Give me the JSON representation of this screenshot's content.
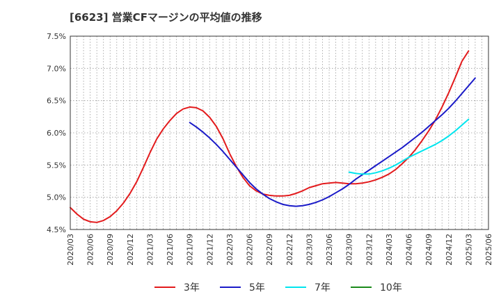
{
  "chart_data": {
    "type": "line",
    "title": "[6623]  営業CFマージンの平均値の推移",
    "xlabel": "",
    "ylabel": "",
    "ylim": [
      4.5,
      7.5
    ],
    "y_ticks": [
      "4.5%",
      "5.0%",
      "5.5%",
      "6.0%",
      "6.5%",
      "7.0%",
      "7.5%"
    ],
    "x_ticks": [
      "2020/03",
      "2020/06",
      "2020/09",
      "2020/12",
      "2021/03",
      "2021/06",
      "2021/09",
      "2021/12",
      "2022/03",
      "2022/06",
      "2022/09",
      "2022/12",
      "2023/03",
      "2023/06",
      "2023/09",
      "2023/12",
      "2024/03",
      "2024/06",
      "2024/09",
      "2024/12",
      "2025/03",
      "2025/06"
    ],
    "grid": true,
    "legend_position": "bottom",
    "series": [
      {
        "name": "3年",
        "color": "#e31a1c",
        "points": [
          [
            "2020/03",
            4.84
          ],
          [
            "2020/04",
            4.74
          ],
          [
            "2020/05",
            4.66
          ],
          [
            "2020/06",
            4.62
          ],
          [
            "2020/07",
            4.61
          ],
          [
            "2020/08",
            4.64
          ],
          [
            "2020/09",
            4.7
          ],
          [
            "2020/10",
            4.79
          ],
          [
            "2020/11",
            4.91
          ],
          [
            "2020/12",
            5.06
          ],
          [
            "2021/01",
            5.24
          ],
          [
            "2021/02",
            5.46
          ],
          [
            "2021/03",
            5.69
          ],
          [
            "2021/04",
            5.9
          ],
          [
            "2021/05",
            6.06
          ],
          [
            "2021/06",
            6.19
          ],
          [
            "2021/07",
            6.3
          ],
          [
            "2021/08",
            6.37
          ],
          [
            "2021/09",
            6.4
          ],
          [
            "2021/10",
            6.39
          ],
          [
            "2021/11",
            6.34
          ],
          [
            "2021/12",
            6.24
          ],
          [
            "2022/01",
            6.1
          ],
          [
            "2022/02",
            5.91
          ],
          [
            "2022/03",
            5.68
          ],
          [
            "2022/04",
            5.48
          ],
          [
            "2022/05",
            5.31
          ],
          [
            "2022/06",
            5.18
          ],
          [
            "2022/07",
            5.1
          ],
          [
            "2022/08",
            5.05
          ],
          [
            "2022/09",
            5.03
          ],
          [
            "2022/10",
            5.02
          ],
          [
            "2022/11",
            5.02
          ],
          [
            "2022/12",
            5.03
          ],
          [
            "2023/01",
            5.06
          ],
          [
            "2023/02",
            5.1
          ],
          [
            "2023/03",
            5.15
          ],
          [
            "2023/04",
            5.18
          ],
          [
            "2023/05",
            5.21
          ],
          [
            "2023/06",
            5.22
          ],
          [
            "2023/07",
            5.23
          ],
          [
            "2023/08",
            5.22
          ],
          [
            "2023/09",
            5.21
          ],
          [
            "2023/10",
            5.21
          ],
          [
            "2023/11",
            5.22
          ],
          [
            "2023/12",
            5.24
          ],
          [
            "2024/01",
            5.27
          ],
          [
            "2024/02",
            5.31
          ],
          [
            "2024/03",
            5.36
          ],
          [
            "2024/04",
            5.43
          ],
          [
            "2024/05",
            5.52
          ],
          [
            "2024/06",
            5.62
          ],
          [
            "2024/07",
            5.74
          ],
          [
            "2024/08",
            5.88
          ],
          [
            "2024/09",
            6.03
          ],
          [
            "2024/10",
            6.2
          ],
          [
            "2024/11",
            6.4
          ],
          [
            "2024/12",
            6.62
          ],
          [
            "2025/01",
            6.86
          ],
          [
            "2025/02",
            7.11
          ],
          [
            "2025/03",
            7.27
          ]
        ]
      },
      {
        "name": "5年",
        "color": "#1a1ac8",
        "points": [
          [
            "2021/09",
            6.16
          ],
          [
            "2021/10",
            6.09
          ],
          [
            "2021/11",
            6.01
          ],
          [
            "2021/12",
            5.92
          ],
          [
            "2022/01",
            5.82
          ],
          [
            "2022/02",
            5.71
          ],
          [
            "2022/03",
            5.59
          ],
          [
            "2022/04",
            5.47
          ],
          [
            "2022/05",
            5.35
          ],
          [
            "2022/06",
            5.23
          ],
          [
            "2022/07",
            5.13
          ],
          [
            "2022/08",
            5.05
          ],
          [
            "2022/09",
            4.98
          ],
          [
            "2022/10",
            4.93
          ],
          [
            "2022/11",
            4.89
          ],
          [
            "2022/12",
            4.87
          ],
          [
            "2023/01",
            4.86
          ],
          [
            "2023/02",
            4.87
          ],
          [
            "2023/03",
            4.89
          ],
          [
            "2023/04",
            4.92
          ],
          [
            "2023/05",
            4.96
          ],
          [
            "2023/06",
            5.01
          ],
          [
            "2023/07",
            5.07
          ],
          [
            "2023/08",
            5.13
          ],
          [
            "2023/09",
            5.2
          ],
          [
            "2023/10",
            5.28
          ],
          [
            "2023/11",
            5.35
          ],
          [
            "2023/12",
            5.42
          ],
          [
            "2024/01",
            5.49
          ],
          [
            "2024/02",
            5.56
          ],
          [
            "2024/03",
            5.63
          ],
          [
            "2024/04",
            5.7
          ],
          [
            "2024/05",
            5.77
          ],
          [
            "2024/06",
            5.85
          ],
          [
            "2024/07",
            5.93
          ],
          [
            "2024/08",
            6.01
          ],
          [
            "2024/09",
            6.1
          ],
          [
            "2024/10",
            6.19
          ],
          [
            "2024/11",
            6.28
          ],
          [
            "2024/12",
            6.38
          ],
          [
            "2025/01",
            6.49
          ],
          [
            "2025/02",
            6.61
          ],
          [
            "2025/03",
            6.73
          ],
          [
            "2025/04",
            6.85
          ]
        ]
      },
      {
        "name": "7年",
        "color": "#00e5ee",
        "points": [
          [
            "2023/09",
            5.39
          ],
          [
            "2023/10",
            5.37
          ],
          [
            "2023/11",
            5.36
          ],
          [
            "2023/12",
            5.36
          ],
          [
            "2024/01",
            5.38
          ],
          [
            "2024/02",
            5.41
          ],
          [
            "2024/03",
            5.45
          ],
          [
            "2024/04",
            5.5
          ],
          [
            "2024/05",
            5.56
          ],
          [
            "2024/06",
            5.62
          ],
          [
            "2024/07",
            5.67
          ],
          [
            "2024/08",
            5.72
          ],
          [
            "2024/09",
            5.77
          ],
          [
            "2024/10",
            5.82
          ],
          [
            "2024/11",
            5.88
          ],
          [
            "2024/12",
            5.95
          ],
          [
            "2025/01",
            6.03
          ],
          [
            "2025/02",
            6.12
          ],
          [
            "2025/03",
            6.21
          ]
        ]
      },
      {
        "name": "10年",
        "color": "#1a8a1a",
        "points": []
      }
    ]
  }
}
